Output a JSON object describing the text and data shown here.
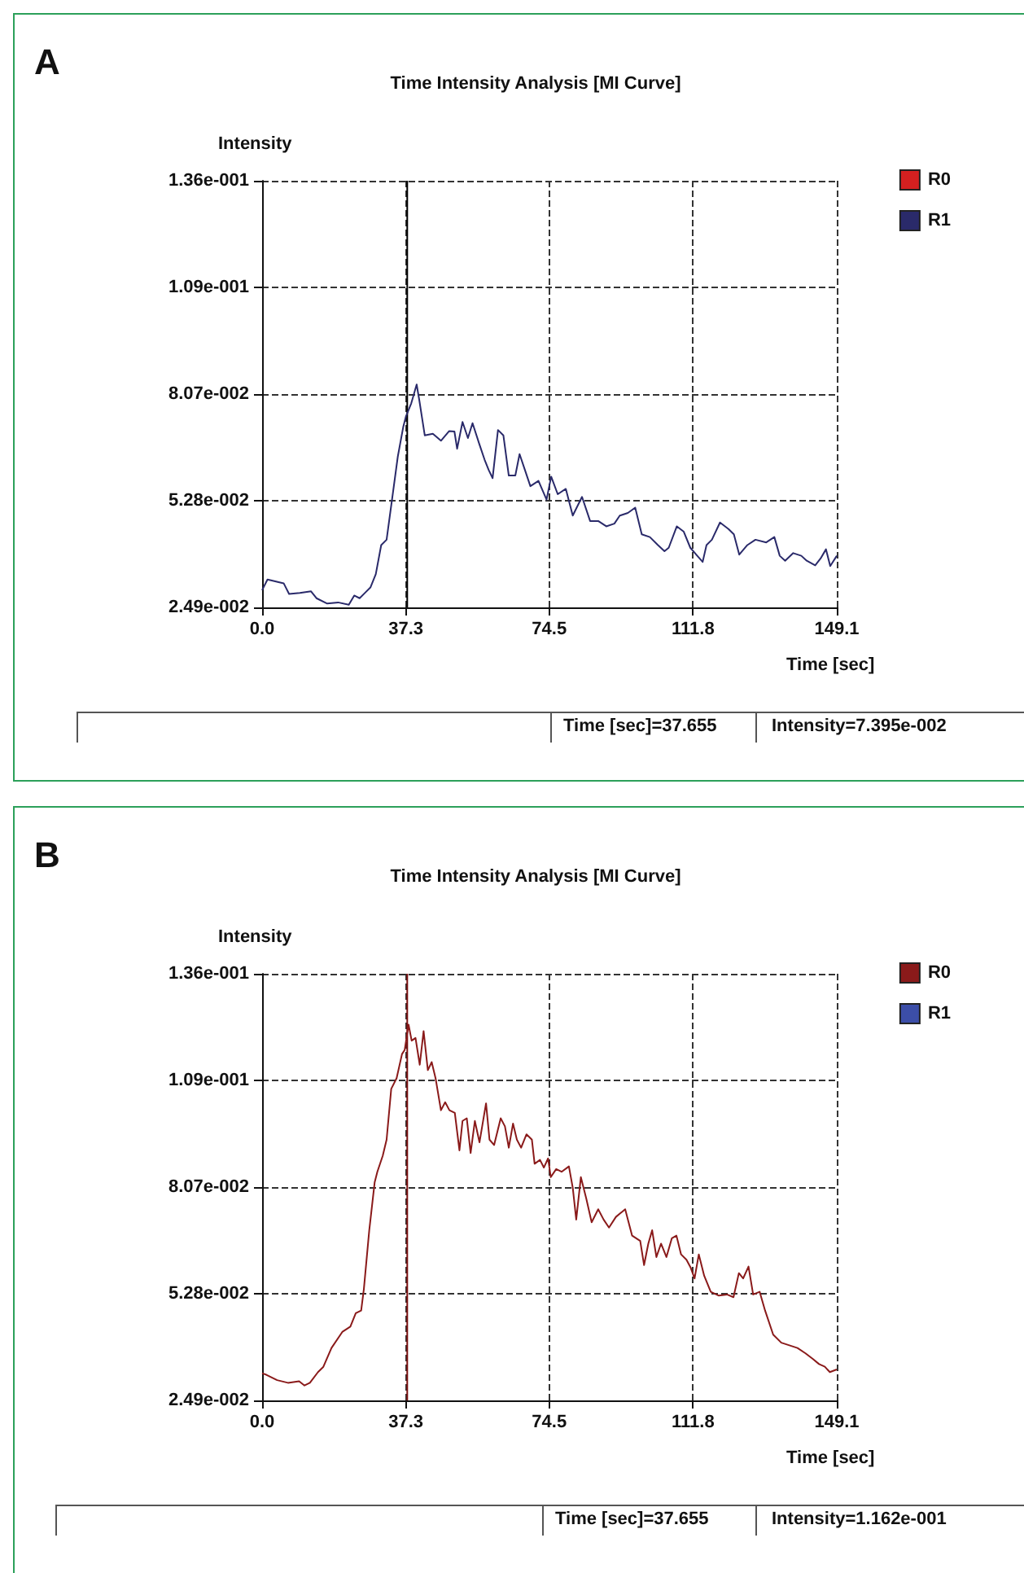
{
  "chart_data": [
    {
      "type": "line",
      "title": "Time Intensity Analysis [MI Curve]",
      "xlabel": "Time [sec]",
      "ylabel": "Intensity",
      "annotations": [
        "A",
        "Time [sec]=37.655",
        "Intensity=7.395e-002"
      ],
      "xlim": [
        0,
        149.1
      ],
      "xticks": [
        {
          "value": 0,
          "label": "0.0"
        },
        37.3,
        74.5,
        111.8,
        149.1
      ],
      "ylim": [
        0.0249,
        0.1365
      ],
      "yticks": [
        {
          "value": 0.0249,
          "label": "2.49e-002"
        },
        {
          "value": 0.0528,
          "label": "5.28e-002"
        },
        {
          "value": 0.0807,
          "label": "8.07e-002"
        },
        {
          "value": 0.1086,
          "label": "1.09e-001"
        },
        {
          "value": 0.1365,
          "label": "1.36e-001"
        }
      ],
      "grid": true,
      "legend": "top right",
      "marker": "none",
      "line_style": "solid",
      "ref_lines": [
        {
          "axis": "x",
          "value": 37.655,
          "color": "#000000"
        }
      ],
      "series": [
        {
          "name": "R0",
          "color": "#d42020"
        },
        {
          "name": "R1",
          "color": "#2a2a6a",
          "x": [
            0,
            1.4,
            5.6,
            7.0,
            9.8,
            12.7,
            14.1,
            16.9,
            19.7,
            22.5,
            23.9,
            25.3,
            26.7,
            28.1,
            29.5,
            30.9,
            32.3,
            33.8,
            35.2,
            36.6,
            37.3,
            38.7,
            40.1,
            40.8,
            42.2,
            44.3,
            46.4,
            48.5,
            49.9,
            50.6,
            52.0,
            53.4,
            54.6,
            56.3,
            57.7,
            58.8,
            59.8,
            61.2,
            62.6,
            64.0,
            65.7,
            66.8,
            68.2,
            69.6,
            71.7,
            73.8,
            75.0,
            76.7,
            78.8,
            80.6,
            83.0,
            85.1,
            87.2,
            89.3,
            91.4,
            92.8,
            94.9,
            96.8,
            98.5,
            100.6,
            102.7,
            104.4,
            105.5,
            107.6,
            109.4,
            111.1,
            112.9,
            114.3,
            115.3,
            116.7,
            118.8,
            121.0,
            122.4,
            123.8,
            125.9,
            128.0,
            130.8,
            132.9,
            134.3,
            135.7,
            137.8,
            139.9,
            141.3,
            143.5,
            144.9,
            146.3,
            147.4,
            149.1
          ],
          "values": [
            0.0294,
            0.0322,
            0.0312,
            0.0284,
            0.0287,
            0.0291,
            0.0273,
            0.0259,
            0.0262,
            0.0256,
            0.028,
            0.0273,
            0.0287,
            0.0301,
            0.0336,
            0.0412,
            0.0426,
            0.0538,
            0.0643,
            0.072,
            0.0748,
            0.0783,
            0.0832,
            0.079,
            0.0699,
            0.0703,
            0.0685,
            0.071,
            0.0709,
            0.0664,
            0.0734,
            0.0692,
            0.0731,
            0.0678,
            0.0636,
            0.0608,
            0.0587,
            0.0713,
            0.0699,
            0.0594,
            0.0594,
            0.065,
            0.0608,
            0.0566,
            0.058,
            0.0531,
            0.0591,
            0.0545,
            0.0559,
            0.0489,
            0.0538,
            0.0475,
            0.0475,
            0.0461,
            0.0468,
            0.0489,
            0.0496,
            0.051,
            0.044,
            0.0433,
            0.0412,
            0.0396,
            0.0405,
            0.0461,
            0.0447,
            0.0405,
            0.0384,
            0.0368,
            0.0412,
            0.0426,
            0.0471,
            0.0454,
            0.044,
            0.0387,
            0.0412,
            0.0426,
            0.0419,
            0.0433,
            0.0384,
            0.0371,
            0.0391,
            0.0384,
            0.0371,
            0.0359,
            0.0377,
            0.0401,
            0.0357,
            0.0384
          ]
        }
      ]
    },
    {
      "type": "line",
      "title": "Time Intensity Analysis [MI Curve]",
      "xlabel": "Time [sec]",
      "ylabel": "Intensity",
      "annotations": [
        "B",
        "Time [sec]=37.655",
        "Intensity=1.162e-001"
      ],
      "xlim": [
        0,
        149.1
      ],
      "xticks": [
        {
          "value": 0,
          "label": "0.0"
        },
        37.3,
        74.5,
        111.8,
        149.1
      ],
      "ylim": [
        0.0249,
        0.1365
      ],
      "yticks": [
        {
          "value": 0.0249,
          "label": "2.49e-002"
        },
        {
          "value": 0.0528,
          "label": "5.28e-002"
        },
        {
          "value": 0.0807,
          "label": "8.07e-002"
        },
        {
          "value": 0.1086,
          "label": "1.09e-001"
        },
        {
          "value": 0.1365,
          "label": "1.36e-001"
        }
      ],
      "grid": true,
      "legend": "top right",
      "marker": "none",
      "line_style": "solid",
      "ref_lines": [
        {
          "axis": "x",
          "value": 37.655,
          "color": "#7a1010"
        }
      ],
      "series": [
        {
          "name": "R0",
          "color": "#8a1a1a",
          "x": [
            0,
            1.1,
            3.9,
            6.7,
            9.6,
            11.0,
            12.4,
            14.5,
            15.9,
            18.0,
            20.8,
            22.9,
            24.3,
            25.7,
            26.4,
            27.8,
            29.2,
            29.9,
            31.3,
            32.3,
            33.5,
            34.9,
            36.3,
            37.0,
            38.0,
            38.8,
            39.8,
            40.9,
            41.9,
            43.0,
            44.0,
            45.0,
            46.4,
            47.5,
            48.6,
            50.0,
            51.2,
            52.0,
            53.1,
            54.1,
            55.2,
            56.4,
            58.1,
            59.0,
            60.2,
            61.9,
            63.0,
            64.0,
            65.1,
            66.1,
            67.2,
            68.6,
            70.0,
            70.7,
            72.1,
            73.1,
            74.2,
            74.9,
            76.3,
            77.7,
            79.6,
            80.6,
            81.5,
            82.7,
            84.1,
            85.5,
            87.2,
            88.6,
            90.0,
            91.8,
            94.2,
            96.0,
            98.1,
            99.1,
            100.2,
            101.2,
            102.3,
            103.5,
            104.9,
            106.3,
            107.5,
            108.7,
            110.1,
            111.2,
            112.2,
            113.3,
            114.7,
            116.4,
            118.5,
            120.6,
            122.3,
            123.7,
            124.8,
            126.2,
            127.4,
            129.1,
            130.5,
            132.6,
            134.7,
            136.8,
            138.9,
            141.0,
            142.8,
            144.5,
            146.0,
            147.3,
            149.1
          ],
          "values": [
            0.032,
            0.0316,
            0.0302,
            0.0295,
            0.0299,
            0.0288,
            0.0295,
            0.0323,
            0.0337,
            0.0386,
            0.0428,
            0.0442,
            0.0477,
            0.0484,
            0.054,
            0.0694,
            0.0819,
            0.0847,
            0.0889,
            0.0931,
            0.1064,
            0.1092,
            0.1155,
            0.1166,
            0.1232,
            0.119,
            0.1197,
            0.1127,
            0.1215,
            0.1113,
            0.1134,
            0.1092,
            0.1008,
            0.1029,
            0.1008,
            0.1001,
            0.0903,
            0.098,
            0.0987,
            0.0896,
            0.098,
            0.0924,
            0.1026,
            0.0931,
            0.0917,
            0.0987,
            0.0966,
            0.091,
            0.0973,
            0.0931,
            0.091,
            0.0945,
            0.0931,
            0.0868,
            0.0878,
            0.0858,
            0.0882,
            0.0833,
            0.0854,
            0.0847,
            0.0861,
            0.0805,
            0.0722,
            0.0833,
            0.0777,
            0.0715,
            0.0749,
            0.0722,
            0.0701,
            0.0729,
            0.0749,
            0.068,
            0.0666,
            0.0603,
            0.0659,
            0.0694,
            0.0624,
            0.0659,
            0.0624,
            0.0673,
            0.068,
            0.0631,
            0.0617,
            0.0596,
            0.0568,
            0.0631,
            0.0575,
            0.0533,
            0.0523,
            0.0526,
            0.0519,
            0.0582,
            0.0568,
            0.0599,
            0.0526,
            0.0533,
            0.0484,
            0.0421,
            0.04,
            0.0393,
            0.0386,
            0.0372,
            0.0358,
            0.0344,
            0.0337,
            0.0323,
            0.033
          ]
        },
        {
          "name": "R1",
          "color": "#3c4ea8"
        }
      ]
    }
  ]
}
